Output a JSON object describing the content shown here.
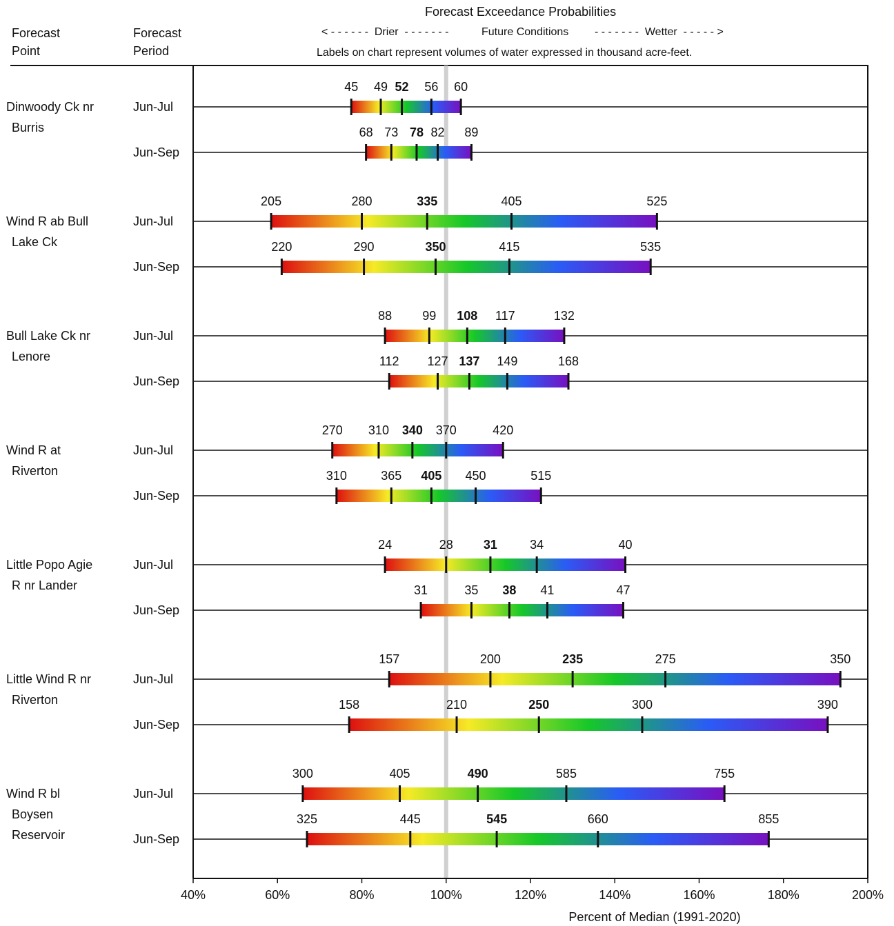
{
  "header": {
    "point_col_line1": "Forecast",
    "point_col_line2": "Point",
    "period_col_line1": "Forecast",
    "period_col_line2": "Period",
    "title": "Forecast Exceedance Probabilities",
    "drier": "< - - - - - -  Drier  - - - - - - -",
    "future": "Future Conditions",
    "wetter": "- - - - - - -  Wetter  - - - - - >",
    "note": "Labels on chart represent volumes of water expressed in thousand acre-feet."
  },
  "chart_data": {
    "type": "range-bar",
    "xlabel": "Percent of Median (1991-2020)",
    "xlim": [
      40,
      200
    ],
    "xticks": [
      40,
      60,
      80,
      100,
      120,
      140,
      160,
      180,
      200
    ],
    "xtick_labels": [
      "40%",
      "60%",
      "80%",
      "100%",
      "120%",
      "140%",
      "160%",
      "180%",
      "200%"
    ],
    "reference_line_pct": 100,
    "bold_index": 2,
    "colors": [
      "#dd1010",
      "#f6ea26",
      "#16c828",
      "#2a5cf6",
      "#7810c0"
    ],
    "groups": [
      {
        "name_line1": "Dinwoody Ck nr",
        "name_line2": "Burris",
        "name_line3": "",
        "rows": [
          {
            "period": "Jun-Jul",
            "volumes": [
              "45",
              "49",
              "52",
              "56",
              "60"
            ],
            "pct": [
              77.5,
              84.5,
              89.5,
              96.5,
              103.5
            ]
          },
          {
            "period": "Jun-Sep",
            "volumes": [
              "68",
              "73",
              "78",
              "82",
              "89"
            ],
            "pct": [
              81,
              87,
              93,
              98,
              106
            ]
          }
        ]
      },
      {
        "name_line1": "Wind R ab Bull",
        "name_line2": "Lake Ck",
        "name_line3": "",
        "rows": [
          {
            "period": "Jun-Jul",
            "volumes": [
              "205",
              "280",
              "335",
              "405",
              "525"
            ],
            "pct": [
              58.5,
              80,
              95.5,
              115.5,
              150
            ]
          },
          {
            "period": "Jun-Sep",
            "volumes": [
              "220",
              "290",
              "350",
              "415",
              "535"
            ],
            "pct": [
              61,
              80.5,
              97.5,
              115,
              148.5
            ]
          }
        ]
      },
      {
        "name_line1": "Bull Lake Ck nr",
        "name_line2": "Lenore",
        "name_line3": "",
        "rows": [
          {
            "period": "Jun-Jul",
            "volumes": [
              "88",
              "99",
              "108",
              "117",
              "132"
            ],
            "pct": [
              85.5,
              96,
              105,
              114,
              128
            ]
          },
          {
            "period": "Jun-Sep",
            "volumes": [
              "112",
              "127",
              "137",
              "149",
              "168"
            ],
            "pct": [
              86.5,
              98,
              105.5,
              114.5,
              129
            ]
          }
        ]
      },
      {
        "name_line1": "Wind R at",
        "name_line2": "Riverton",
        "name_line3": "",
        "rows": [
          {
            "period": "Jun-Jul",
            "volumes": [
              "270",
              "310",
              "340",
              "370",
              "420"
            ],
            "pct": [
              73,
              84,
              92,
              100,
              113.5
            ]
          },
          {
            "period": "Jun-Sep",
            "volumes": [
              "310",
              "365",
              "405",
              "450",
              "515"
            ],
            "pct": [
              74,
              87,
              96.5,
              107,
              122.5
            ]
          }
        ]
      },
      {
        "name_line1": "Little Popo Agie",
        "name_line2": "R nr Lander",
        "name_line3": "",
        "rows": [
          {
            "period": "Jun-Jul",
            "volumes": [
              "24",
              "28",
              "31",
              "34",
              "40"
            ],
            "pct": [
              85.5,
              100,
              110.5,
              121.5,
              142.5
            ]
          },
          {
            "period": "Jun-Sep",
            "volumes": [
              "31",
              "35",
              "38",
              "41",
              "47"
            ],
            "pct": [
              94,
              106,
              115,
              124,
              142
            ]
          }
        ]
      },
      {
        "name_line1": "Little Wind R nr",
        "name_line2": "Riverton",
        "name_line3": "",
        "rows": [
          {
            "period": "Jun-Jul",
            "volumes": [
              "157",
              "200",
              "235",
              "275",
              "350"
            ],
            "pct": [
              86.5,
              110.5,
              130,
              152,
              193.5
            ]
          },
          {
            "period": "Jun-Sep",
            "volumes": [
              "158",
              "210",
              "250",
              "300",
              "390"
            ],
            "pct": [
              77,
              102.5,
              122,
              146.5,
              190.5
            ]
          }
        ]
      },
      {
        "name_line1": "Wind R bl",
        "name_line2": "Boysen",
        "name_line3": "Reservoir",
        "rows": [
          {
            "period": "Jun-Jul",
            "volumes": [
              "300",
              "405",
              "490",
              "585",
              "755"
            ],
            "pct": [
              66,
              89,
              107.5,
              128.5,
              166
            ]
          },
          {
            "period": "Jun-Sep",
            "volumes": [
              "325",
              "445",
              "545",
              "660",
              "855"
            ],
            "pct": [
              67,
              91.5,
              112,
              136,
              176.5
            ]
          }
        ]
      }
    ]
  }
}
